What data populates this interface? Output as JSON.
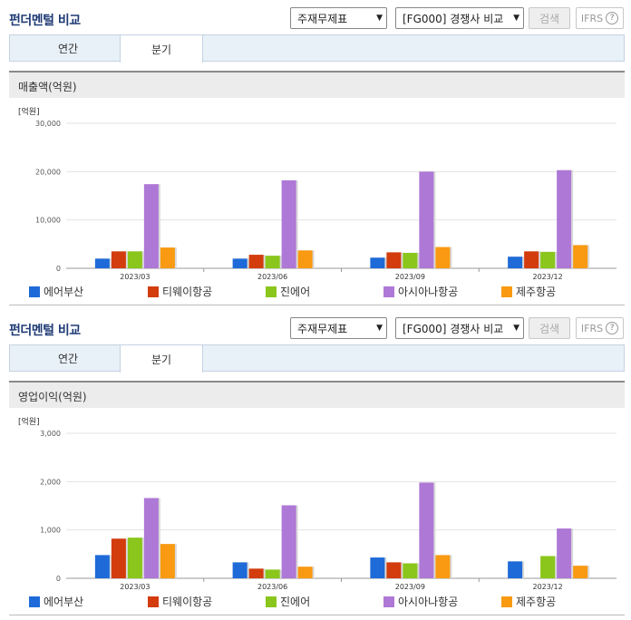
{
  "header": {
    "title": "펀더멘털 비교",
    "select_statement": "주재무제표",
    "select_compare": "[FG000] 경쟁사 비교",
    "search_label": "검색",
    "ifrs_label": "IFRS",
    "help_label": "?"
  },
  "tabs": [
    {
      "label": "연간"
    },
    {
      "label": "분기"
    }
  ],
  "active_tab": 1,
  "colors": [
    "#1e6ad8",
    "#d33c0d",
    "#8ac61b",
    "#ae78d6",
    "#f99a12"
  ],
  "legend": [
    "에어부산",
    "티웨이항공",
    "진에어",
    "아시아나항공",
    "제주항공"
  ],
  "chart_data": [
    {
      "type": "bar",
      "title": "매출액(억원)",
      "unit": "[억원]",
      "categories": [
        "2023/03",
        "2023/06",
        "2023/09",
        "2023/12"
      ],
      "yticks": [
        "0",
        "10,000",
        "20,000",
        "30,000"
      ],
      "ylim": [
        0,
        30000
      ],
      "series": [
        {
          "name": "에어부산",
          "values": [
            2000,
            2000,
            2200,
            2400
          ]
        },
        {
          "name": "티웨이항공",
          "values": [
            3500,
            2800,
            3300,
            3500
          ]
        },
        {
          "name": "진에어",
          "values": [
            3500,
            2600,
            3200,
            3400
          ]
        },
        {
          "name": "아시아나항공",
          "values": [
            17400,
            18200,
            20000,
            20300
          ]
        },
        {
          "name": "제주항공",
          "values": [
            4300,
            3700,
            4400,
            4800
          ]
        }
      ]
    },
    {
      "type": "bar",
      "title": "영업이익(억원)",
      "unit": "[억원]",
      "categories": [
        "2023/03",
        "2023/06",
        "2023/09",
        "2023/12"
      ],
      "yticks": [
        "0",
        "1,000",
        "2,000",
        "3,000"
      ],
      "ylim": [
        0,
        3000
      ],
      "series": [
        {
          "name": "에어부산",
          "values": [
            480,
            330,
            430,
            350
          ]
        },
        {
          "name": "티웨이항공",
          "values": [
            820,
            200,
            330,
            0
          ]
        },
        {
          "name": "진에어",
          "values": [
            840,
            180,
            310,
            460
          ]
        },
        {
          "name": "아시아나항공",
          "values": [
            1660,
            1510,
            1980,
            1030
          ]
        },
        {
          "name": "제주항공",
          "values": [
            710,
            240,
            480,
            260
          ]
        }
      ]
    }
  ]
}
